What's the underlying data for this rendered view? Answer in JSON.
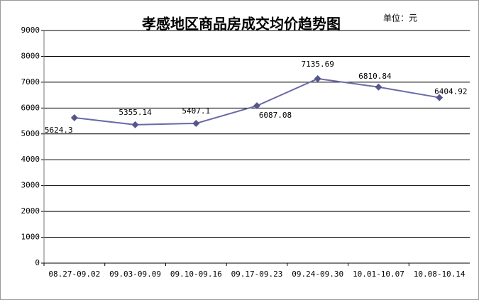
{
  "chart_data": {
    "type": "line",
    "title": "孝感地区商品房成交均价趋势图",
    "unit": "单位：元",
    "categories": [
      "08.27-09.02",
      "09.03-09.09",
      "09.10-09.16",
      "09.17-09.23",
      "09.24-09.30",
      "10.01-10.07",
      "10.08-10.14"
    ],
    "series": [
      {
        "name": "成交均价",
        "color": "#6a6aa8",
        "values": [
          5624.3,
          5355.14,
          5407.1,
          6087.08,
          7135.69,
          6810.84,
          6404.92
        ]
      }
    ],
    "ylim": [
      0,
      9000
    ],
    "yticks": [
      0,
      1000,
      2000,
      3000,
      4000,
      5000,
      6000,
      7000,
      8000,
      9000
    ],
    "grid": true
  }
}
